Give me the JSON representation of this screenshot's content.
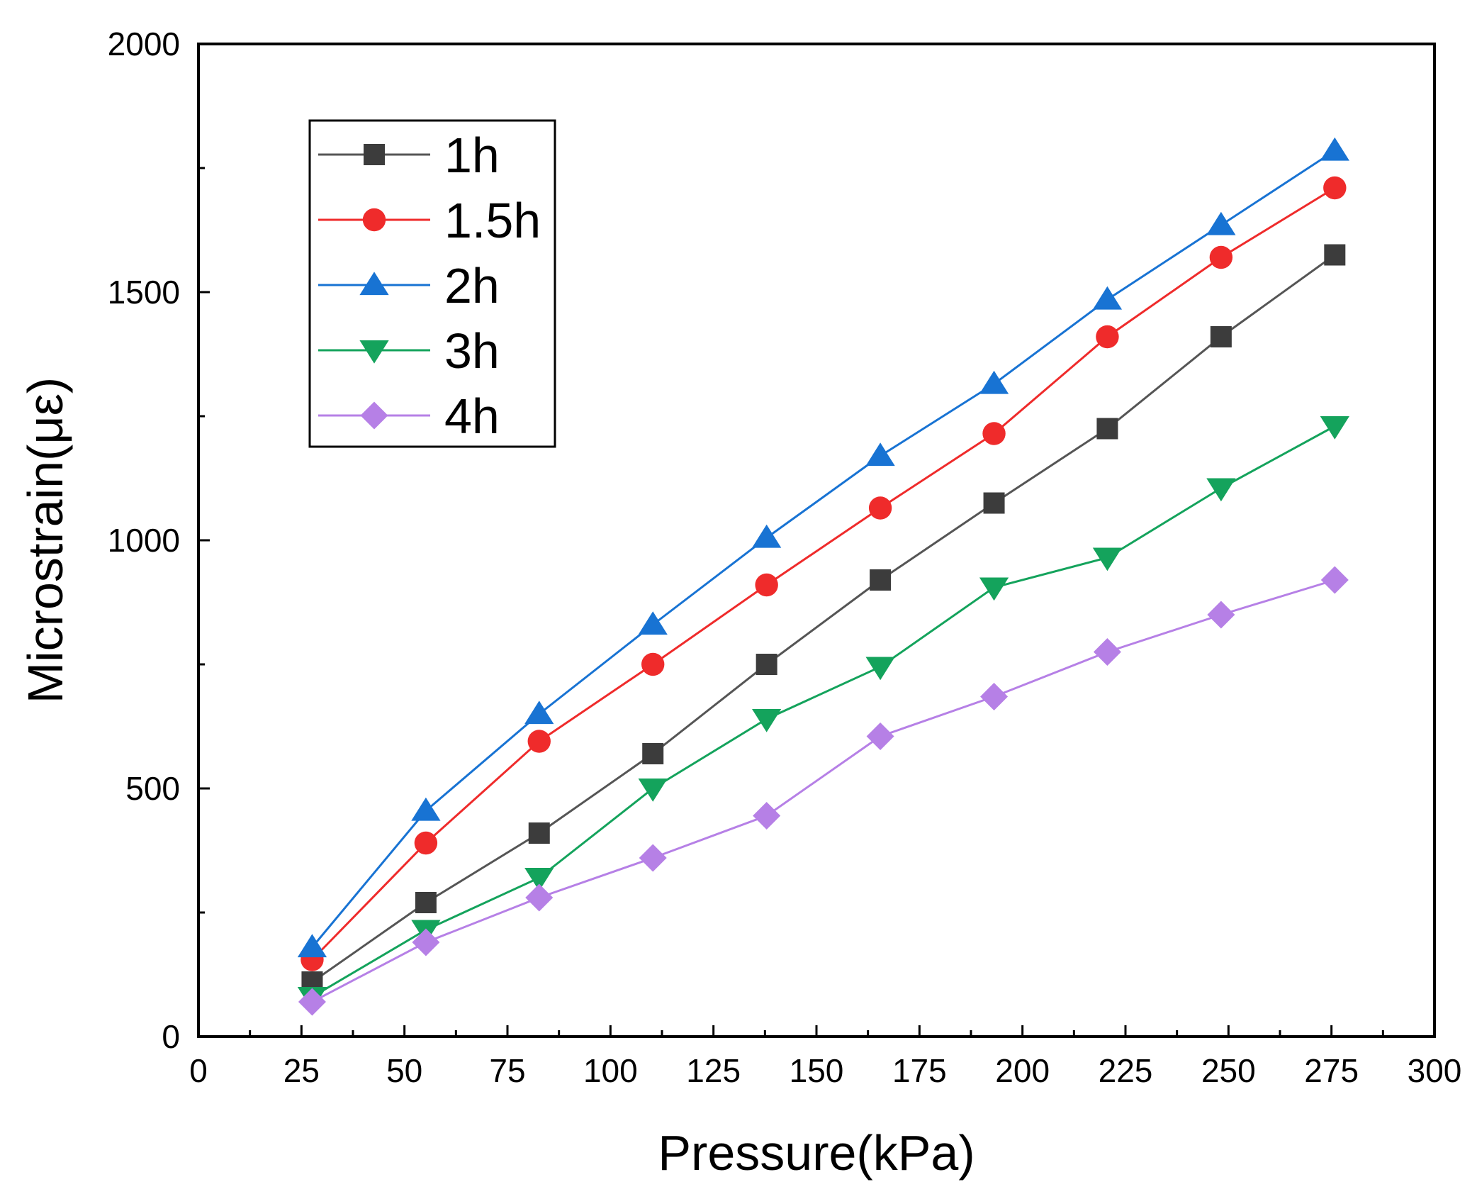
{
  "chart_data": {
    "type": "line",
    "title": "",
    "xlabel": "Pressure(kPa)",
    "ylabel": "Microstrain(με)",
    "xlim": [
      0,
      300
    ],
    "ylim": [
      0,
      2000
    ],
    "x_ticks": [
      "0",
      "25",
      "50",
      "75",
      "100",
      "125",
      "150",
      "175",
      "200",
      "225",
      "250",
      "275",
      "300"
    ],
    "y_ticks": [
      "0",
      "500",
      "1000",
      "1500",
      "2000"
    ],
    "x": [
      27.6,
      55.2,
      82.7,
      110.3,
      137.9,
      165.5,
      193.1,
      220.6,
      248.2,
      275.8
    ],
    "legend_position": "top-left",
    "series": [
      {
        "name": "1h",
        "marker": "square",
        "color": "#3c3c3c",
        "line_color": "#555555",
        "values": [
          110,
          270,
          410,
          570,
          750,
          920,
          1075,
          1225,
          1410,
          1575
        ]
      },
      {
        "name": "1.5h",
        "marker": "circle",
        "color": "#ef2b2b",
        "line_color": "#ef2b2b",
        "values": [
          155,
          390,
          595,
          750,
          910,
          1065,
          1215,
          1410,
          1570,
          1710
        ]
      },
      {
        "name": "2h",
        "marker": "triangle-up",
        "color": "#1873d3",
        "line_color": "#1873d3",
        "values": [
          180,
          455,
          650,
          830,
          1005,
          1170,
          1315,
          1485,
          1635,
          1785
        ]
      },
      {
        "name": "3h",
        "marker": "triangle-down",
        "color": "#14a35c",
        "line_color": "#14a35c",
        "values": [
          80,
          215,
          320,
          500,
          640,
          745,
          905,
          965,
          1105,
          1230
        ]
      },
      {
        "name": "4h",
        "marker": "diamond",
        "color": "#b680e6",
        "line_color": "#b680e6",
        "values": [
          70,
          190,
          280,
          360,
          445,
          605,
          685,
          775,
          850,
          920
        ]
      }
    ]
  }
}
